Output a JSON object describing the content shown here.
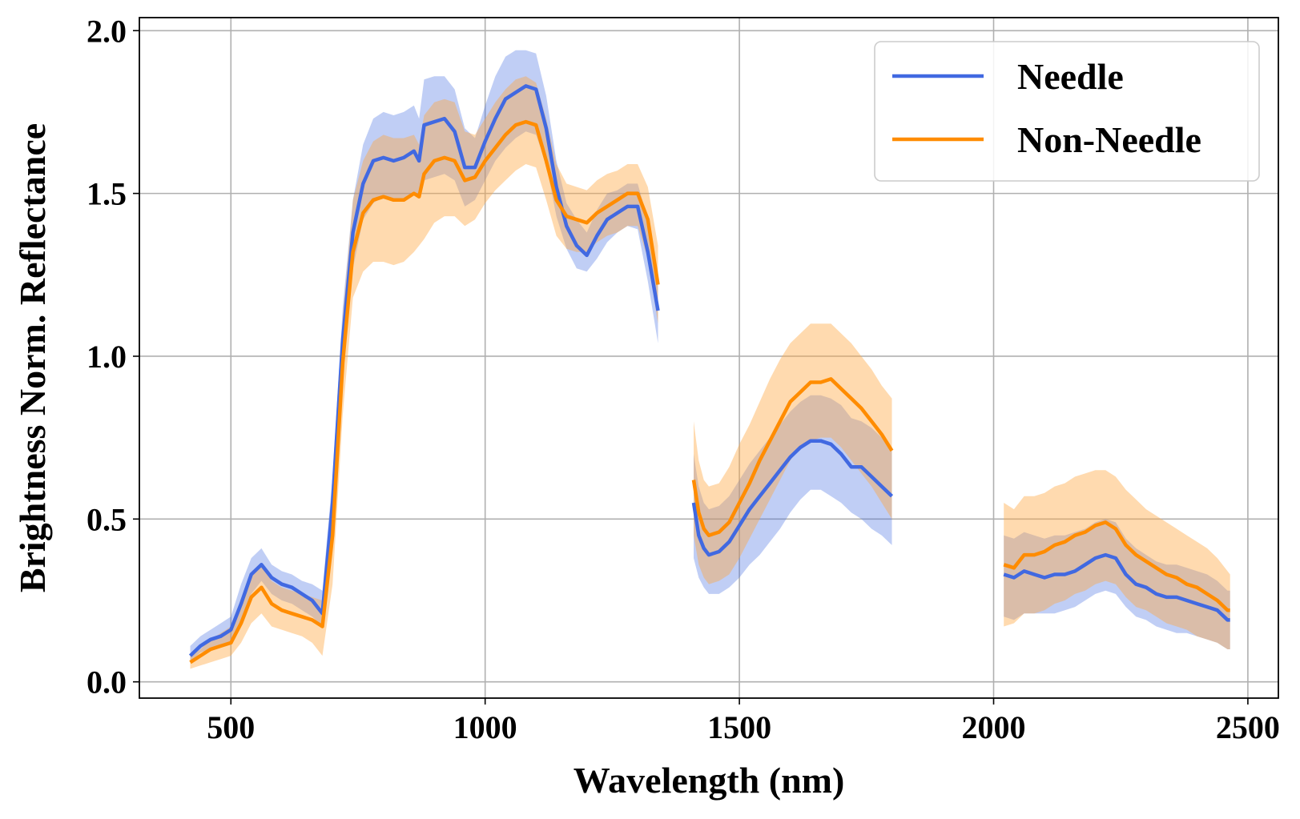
{
  "chart_data": {
    "type": "line",
    "title": "",
    "xlabel": "Wavelength (nm)",
    "ylabel": "Brightness Norm. Reflectance",
    "xlim": [
      320,
      2560
    ],
    "ylim": [
      -0.05,
      2.04
    ],
    "xticks": [
      500,
      1000,
      1500,
      2000,
      2500
    ],
    "xtick_labels": [
      "500",
      "1000",
      "1500",
      "2000",
      "2500"
    ],
    "yticks": [
      0.0,
      0.5,
      1.0,
      1.5,
      2.0
    ],
    "ytick_labels": [
      "0.0",
      "0.5",
      "1.0",
      "1.5",
      "2.0"
    ],
    "grid": true,
    "legend_position": "top-right",
    "series": [
      {
        "name": "Needle",
        "color": "#4169e1",
        "band_color": "#4169e1",
        "band_opacity": 0.33,
        "segments": [
          {
            "x": [
              420,
              440,
              460,
              480,
              500,
              520,
              540,
              560,
              580,
              600,
              620,
              640,
              660,
              680,
              700,
              720,
              740,
              760,
              780,
              800,
              820,
              840,
              860,
              870,
              880,
              900,
              920,
              940,
              960,
              980,
              1000,
              1020,
              1040,
              1060,
              1080,
              1100,
              1120,
              1140,
              1160,
              1180,
              1200,
              1220,
              1240,
              1260,
              1280,
              1300,
              1320,
              1340
            ],
            "y": [
              0.08,
              0.11,
              0.13,
              0.14,
              0.16,
              0.24,
              0.33,
              0.36,
              0.32,
              0.3,
              0.29,
              0.27,
              0.25,
              0.21,
              0.55,
              1.05,
              1.38,
              1.53,
              1.6,
              1.61,
              1.6,
              1.61,
              1.63,
              1.6,
              1.71,
              1.72,
              1.73,
              1.69,
              1.58,
              1.58,
              1.66,
              1.73,
              1.79,
              1.81,
              1.83,
              1.82,
              1.7,
              1.52,
              1.4,
              1.34,
              1.31,
              1.37,
              1.42,
              1.44,
              1.46,
              1.46,
              1.32,
              1.14
            ],
            "lower": [
              0.06,
              0.09,
              0.1,
              0.11,
              0.12,
              0.19,
              0.27,
              0.31,
              0.27,
              0.25,
              0.24,
              0.22,
              0.2,
              0.17,
              0.48,
              0.96,
              1.27,
              1.42,
              1.47,
              1.49,
              1.48,
              1.48,
              1.5,
              1.49,
              1.54,
              1.55,
              1.56,
              1.54,
              1.46,
              1.48,
              1.54,
              1.6,
              1.64,
              1.67,
              1.69,
              1.68,
              1.59,
              1.43,
              1.33,
              1.27,
              1.26,
              1.3,
              1.35,
              1.38,
              1.4,
              1.39,
              1.23,
              1.04
            ],
            "upper": [
              0.11,
              0.14,
              0.16,
              0.18,
              0.2,
              0.3,
              0.38,
              0.41,
              0.36,
              0.34,
              0.33,
              0.31,
              0.3,
              0.28,
              0.63,
              1.15,
              1.48,
              1.65,
              1.73,
              1.75,
              1.74,
              1.75,
              1.77,
              1.73,
              1.85,
              1.86,
              1.86,
              1.82,
              1.7,
              1.67,
              1.77,
              1.86,
              1.92,
              1.94,
              1.94,
              1.93,
              1.8,
              1.6,
              1.47,
              1.42,
              1.38,
              1.45,
              1.5,
              1.51,
              1.53,
              1.53,
              1.42,
              1.24
            ]
          },
          {
            "x": [
              1410,
              1420,
              1430,
              1440,
              1460,
              1480,
              1500,
              1520,
              1540,
              1560,
              1580,
              1600,
              1620,
              1640,
              1660,
              1680,
              1700,
              1720,
              1740,
              1760,
              1780,
              1800
            ],
            "y": [
              0.55,
              0.45,
              0.41,
              0.39,
              0.4,
              0.43,
              0.48,
              0.53,
              0.57,
              0.61,
              0.65,
              0.69,
              0.72,
              0.74,
              0.74,
              0.73,
              0.7,
              0.66,
              0.66,
              0.63,
              0.6,
              0.57
            ],
            "lower": [
              0.38,
              0.32,
              0.29,
              0.27,
              0.27,
              0.29,
              0.32,
              0.36,
              0.39,
              0.43,
              0.47,
              0.52,
              0.56,
              0.59,
              0.59,
              0.57,
              0.55,
              0.52,
              0.5,
              0.47,
              0.45,
              0.42
            ],
            "upper": [
              0.7,
              0.6,
              0.55,
              0.53,
              0.54,
              0.57,
              0.62,
              0.67,
              0.71,
              0.75,
              0.79,
              0.83,
              0.86,
              0.88,
              0.88,
              0.87,
              0.85,
              0.81,
              0.8,
              0.78,
              0.75,
              0.72
            ]
          },
          {
            "x": [
              2020,
              2040,
              2060,
              2080,
              2100,
              2120,
              2140,
              2160,
              2180,
              2200,
              2220,
              2240,
              2260,
              2280,
              2300,
              2320,
              2340,
              2360,
              2380,
              2400,
              2420,
              2440,
              2460,
              2465
            ],
            "y": [
              0.33,
              0.32,
              0.34,
              0.33,
              0.32,
              0.33,
              0.33,
              0.34,
              0.36,
              0.38,
              0.39,
              0.38,
              0.33,
              0.3,
              0.29,
              0.27,
              0.26,
              0.26,
              0.25,
              0.24,
              0.23,
              0.22,
              0.19,
              0.19
            ],
            "lower": [
              0.2,
              0.19,
              0.21,
              0.21,
              0.21,
              0.21,
              0.22,
              0.23,
              0.25,
              0.27,
              0.28,
              0.27,
              0.23,
              0.2,
              0.19,
              0.17,
              0.16,
              0.15,
              0.15,
              0.14,
              0.13,
              0.12,
              0.1,
              0.1
            ],
            "upper": [
              0.45,
              0.44,
              0.46,
              0.45,
              0.44,
              0.45,
              0.45,
              0.46,
              0.47,
              0.49,
              0.5,
              0.49,
              0.44,
              0.41,
              0.39,
              0.37,
              0.36,
              0.36,
              0.35,
              0.34,
              0.33,
              0.31,
              0.28,
              0.28
            ]
          }
        ]
      },
      {
        "name": "Non-Needle",
        "color": "#ff8c00",
        "band_color": "#ffa640",
        "band_opacity": 0.42,
        "segments": [
          {
            "x": [
              420,
              440,
              460,
              480,
              500,
              520,
              540,
              560,
              580,
              600,
              620,
              640,
              660,
              680,
              700,
              720,
              740,
              760,
              780,
              800,
              820,
              840,
              860,
              870,
              880,
              900,
              920,
              940,
              960,
              980,
              1000,
              1020,
              1040,
              1060,
              1080,
              1100,
              1120,
              1140,
              1160,
              1180,
              1200,
              1220,
              1240,
              1260,
              1280,
              1300,
              1320,
              1340
            ],
            "y": [
              0.06,
              0.08,
              0.1,
              0.11,
              0.12,
              0.18,
              0.26,
              0.29,
              0.24,
              0.22,
              0.21,
              0.2,
              0.19,
              0.17,
              0.45,
              0.98,
              1.32,
              1.44,
              1.48,
              1.49,
              1.48,
              1.48,
              1.5,
              1.49,
              1.56,
              1.6,
              1.61,
              1.6,
              1.54,
              1.55,
              1.6,
              1.64,
              1.68,
              1.71,
              1.72,
              1.71,
              1.6,
              1.48,
              1.43,
              1.42,
              1.41,
              1.44,
              1.46,
              1.48,
              1.5,
              1.5,
              1.42,
              1.22
            ],
            "lower": [
              0.04,
              0.05,
              0.06,
              0.07,
              0.08,
              0.12,
              0.18,
              0.21,
              0.17,
              0.16,
              0.15,
              0.14,
              0.12,
              0.08,
              0.3,
              0.82,
              1.18,
              1.26,
              1.29,
              1.29,
              1.28,
              1.29,
              1.32,
              1.34,
              1.36,
              1.41,
              1.43,
              1.43,
              1.4,
              1.42,
              1.47,
              1.51,
              1.54,
              1.57,
              1.59,
              1.58,
              1.48,
              1.37,
              1.33,
              1.32,
              1.32,
              1.35,
              1.37,
              1.38,
              1.4,
              1.4,
              1.3,
              1.1
            ],
            "upper": [
              0.08,
              0.1,
              0.13,
              0.15,
              0.17,
              0.24,
              0.33,
              0.36,
              0.31,
              0.29,
              0.28,
              0.27,
              0.26,
              0.25,
              0.6,
              1.12,
              1.48,
              1.6,
              1.66,
              1.68,
              1.67,
              1.67,
              1.68,
              1.65,
              1.74,
              1.78,
              1.79,
              1.78,
              1.69,
              1.68,
              1.73,
              1.78,
              1.82,
              1.85,
              1.86,
              1.84,
              1.73,
              1.59,
              1.53,
              1.52,
              1.51,
              1.54,
              1.56,
              1.57,
              1.59,
              1.59,
              1.52,
              1.34
            ]
          },
          {
            "x": [
              1410,
              1420,
              1430,
              1440,
              1460,
              1480,
              1500,
              1520,
              1540,
              1560,
              1580,
              1600,
              1620,
              1640,
              1660,
              1680,
              1700,
              1720,
              1740,
              1760,
              1780,
              1800
            ],
            "y": [
              0.62,
              0.52,
              0.47,
              0.45,
              0.46,
              0.49,
              0.55,
              0.61,
              0.68,
              0.74,
              0.8,
              0.86,
              0.89,
              0.92,
              0.92,
              0.93,
              0.9,
              0.87,
              0.84,
              0.8,
              0.76,
              0.71
            ],
            "lower": [
              0.45,
              0.36,
              0.32,
              0.3,
              0.31,
              0.33,
              0.38,
              0.44,
              0.5,
              0.56,
              0.62,
              0.68,
              0.72,
              0.74,
              0.75,
              0.75,
              0.72,
              0.68,
              0.64,
              0.6,
              0.55,
              0.5
            ],
            "upper": [
              0.8,
              0.68,
              0.62,
              0.6,
              0.61,
              0.66,
              0.73,
              0.79,
              0.86,
              0.93,
              0.99,
              1.04,
              1.07,
              1.1,
              1.1,
              1.1,
              1.07,
              1.04,
              1.0,
              0.96,
              0.91,
              0.87
            ]
          },
          {
            "x": [
              2020,
              2040,
              2060,
              2080,
              2100,
              2120,
              2140,
              2160,
              2180,
              2200,
              2220,
              2240,
              2260,
              2280,
              2300,
              2320,
              2340,
              2360,
              2380,
              2400,
              2420,
              2440,
              2460,
              2465
            ],
            "y": [
              0.36,
              0.35,
              0.39,
              0.39,
              0.4,
              0.42,
              0.43,
              0.45,
              0.46,
              0.48,
              0.49,
              0.47,
              0.42,
              0.39,
              0.37,
              0.35,
              0.33,
              0.32,
              0.3,
              0.29,
              0.27,
              0.25,
              0.22,
              0.22
            ],
            "lower": [
              0.17,
              0.18,
              0.21,
              0.21,
              0.22,
              0.24,
              0.25,
              0.27,
              0.28,
              0.3,
              0.31,
              0.3,
              0.26,
              0.23,
              0.22,
              0.2,
              0.18,
              0.17,
              0.16,
              0.14,
              0.13,
              0.12,
              0.1,
              0.1
            ],
            "upper": [
              0.55,
              0.53,
              0.57,
              0.57,
              0.58,
              0.6,
              0.61,
              0.63,
              0.64,
              0.65,
              0.65,
              0.63,
              0.59,
              0.56,
              0.53,
              0.51,
              0.49,
              0.47,
              0.45,
              0.43,
              0.41,
              0.38,
              0.34,
              0.33
            ]
          }
        ]
      }
    ]
  }
}
